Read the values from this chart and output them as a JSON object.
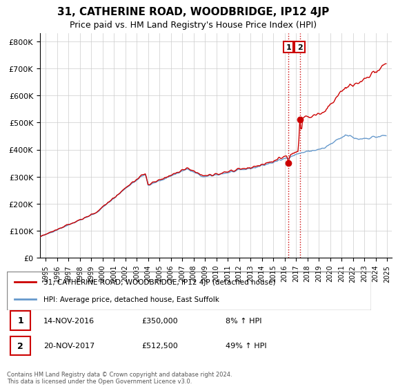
{
  "title": "31, CATHERINE ROAD, WOODBRIDGE, IP12 4JP",
  "subtitle": "Price paid vs. HM Land Registry's House Price Index (HPI)",
  "ylabel_ticks": [
    "£0",
    "£100K",
    "£200K",
    "£300K",
    "£400K",
    "£500K",
    "£600K",
    "£700K",
    "£800K"
  ],
  "ytick_vals": [
    0,
    100000,
    200000,
    300000,
    400000,
    500000,
    600000,
    700000,
    800000
  ],
  "ylim": [
    0,
    830000
  ],
  "red_line_label": "31, CATHERINE ROAD, WOODBRIDGE, IP12 4JP (detached house)",
  "blue_line_label": "HPI: Average price, detached house, East Suffolk",
  "annotation1_label": "1",
  "annotation1_date": "14-NOV-2016",
  "annotation1_price": "£350,000",
  "annotation1_hpi": "8% ↑ HPI",
  "annotation2_label": "2",
  "annotation2_date": "20-NOV-2017",
  "annotation2_price": "£512,500",
  "annotation2_hpi": "49% ↑ HPI",
  "footer": "Contains HM Land Registry data © Crown copyright and database right 2024.\nThis data is licensed under the Open Government Licence v3.0.",
  "red_color": "#cc0000",
  "blue_color": "#6699cc",
  "grid_color": "#cccccc",
  "annotation_vline_color": "#cc0000",
  "bg_color": "#ffffff",
  "xstart_year": 1995,
  "xend_year": 2025
}
